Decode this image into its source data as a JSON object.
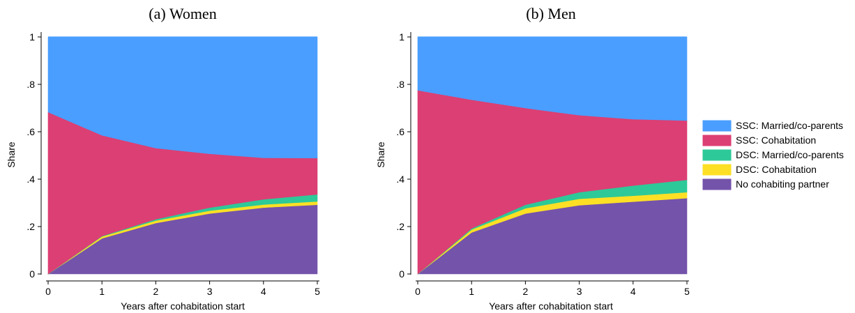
{
  "chart_data": [
    {
      "type": "area",
      "title": "(a)  Women",
      "xlabel": "Years after cohabitation start",
      "ylabel": "Share",
      "x": [
        0,
        1,
        2,
        3,
        4,
        5
      ],
      "xticks": [
        "0",
        "1",
        "2",
        "3",
        "4",
        "5"
      ],
      "yticks": [
        "0",
        ".2",
        ".4",
        ".6",
        ".8",
        "1"
      ],
      "ylim": [
        0,
        1
      ],
      "stacked": true,
      "grid": false,
      "series": [
        {
          "name": "No cohabiting partner",
          "color": "#7453ab",
          "values": [
            0.0,
            0.15,
            0.215,
            0.255,
            0.28,
            0.292
          ]
        },
        {
          "name": "DSC: Cohabitation",
          "color": "#fde025",
          "values": [
            0.0,
            0.008,
            0.01,
            0.012,
            0.013,
            0.014
          ]
        },
        {
          "name": "DSC: Married/co-parents",
          "color": "#2ec998",
          "values": [
            0.0,
            0.002,
            0.006,
            0.013,
            0.022,
            0.03
          ]
        },
        {
          "name": "SSC: Cohabitation",
          "color": "#dc3f73",
          "values": [
            0.683,
            0.425,
            0.3,
            0.227,
            0.175,
            0.153
          ]
        },
        {
          "name": "SSC: Married/co-parents",
          "color": "#4a9eff",
          "values": [
            0.317,
            0.415,
            0.469,
            0.493,
            0.51,
            0.511
          ]
        }
      ]
    },
    {
      "type": "area",
      "title": "(b)  Men",
      "xlabel": "Years after cohabitation start",
      "ylabel": "Share",
      "x": [
        0,
        1,
        2,
        3,
        4,
        5
      ],
      "xticks": [
        "0",
        "1",
        "2",
        "3",
        "4",
        "5"
      ],
      "yticks": [
        "0",
        ".2",
        ".4",
        ".6",
        ".8",
        "1"
      ],
      "ylim": [
        0,
        1
      ],
      "stacked": true,
      "grid": false,
      "series": [
        {
          "name": "No cohabiting partner",
          "color": "#7453ab",
          "values": [
            0.0,
            0.175,
            0.255,
            0.29,
            0.305,
            0.32
          ]
        },
        {
          "name": "DSC: Cohabitation",
          "color": "#fde025",
          "values": [
            0.0,
            0.012,
            0.022,
            0.027,
            0.025,
            0.025
          ]
        },
        {
          "name": "DSC: Married/co-parents",
          "color": "#2ec998",
          "values": [
            0.0,
            0.005,
            0.015,
            0.028,
            0.043,
            0.052
          ]
        },
        {
          "name": "SSC: Cohabitation",
          "color": "#dc3f73",
          "values": [
            0.775,
            0.543,
            0.408,
            0.325,
            0.28,
            0.25
          ]
        },
        {
          "name": "SSC: Married/co-parents",
          "color": "#4a9eff",
          "values": [
            0.225,
            0.265,
            0.3,
            0.33,
            0.347,
            0.353
          ]
        }
      ]
    }
  ],
  "legend": {
    "placement": "right",
    "items": [
      {
        "label": "SSC: Married/co-parents",
        "color": "#4a9eff"
      },
      {
        "label": "SSC: Cohabitation",
        "color": "#dc3f73"
      },
      {
        "label": "DSC: Married/co-parents",
        "color": "#2ec998"
      },
      {
        "label": "DSC: Cohabitation",
        "color": "#fde025"
      },
      {
        "label": "No cohabiting partner",
        "color": "#7453ab"
      }
    ]
  }
}
